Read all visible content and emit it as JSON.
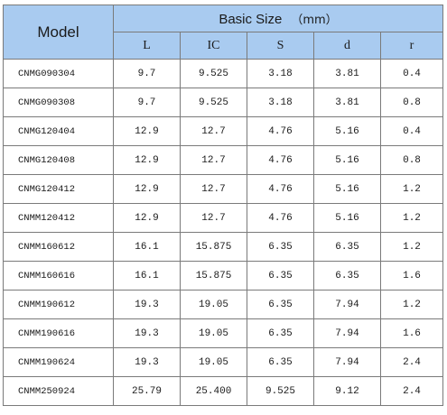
{
  "header": {
    "model": "Model",
    "group": "Basic Size",
    "unit": "（mm）",
    "columns": [
      "L",
      "IC",
      "S",
      "d",
      "r"
    ]
  },
  "rows": [
    {
      "model": "CNMG090304",
      "L": "9.7",
      "IC": "9.525",
      "S": "3.18",
      "d": "3.81",
      "r": "0.4"
    },
    {
      "model": "CNMG090308",
      "L": "9.7",
      "IC": "9.525",
      "S": "3.18",
      "d": "3.81",
      "r": "0.8"
    },
    {
      "model": "CNMG120404",
      "L": "12.9",
      "IC": "12.7",
      "S": "4.76",
      "d": "5.16",
      "r": "0.4"
    },
    {
      "model": "CNMG120408",
      "L": "12.9",
      "IC": "12.7",
      "S": "4.76",
      "d": "5.16",
      "r": "0.8"
    },
    {
      "model": "CNMG120412",
      "L": "12.9",
      "IC": "12.7",
      "S": "4.76",
      "d": "5.16",
      "r": "1.2"
    },
    {
      "model": "CNMM120412",
      "L": "12.9",
      "IC": "12.7",
      "S": "4.76",
      "d": "5.16",
      "r": "1.2"
    },
    {
      "model": "CNMM160612",
      "L": "16.1",
      "IC": "15.875",
      "S": "6.35",
      "d": "6.35",
      "r": "1.2"
    },
    {
      "model": "CNMM160616",
      "L": "16.1",
      "IC": "15.875",
      "S": "6.35",
      "d": "6.35",
      "r": "1.6"
    },
    {
      "model": "CNMM190612",
      "L": "19.3",
      "IC": "19.05",
      "S": "6.35",
      "d": "7.94",
      "r": "1.2"
    },
    {
      "model": "CNMM190616",
      "L": "19.3",
      "IC": "19.05",
      "S": "6.35",
      "d": "7.94",
      "r": "1.6"
    },
    {
      "model": "CNMM190624",
      "L": "19.3",
      "IC": "19.05",
      "S": "6.35",
      "d": "7.94",
      "r": "2.4"
    },
    {
      "model": "CNMM250924",
      "L": "25.79",
      "IC": "25.400",
      "S": "9.525",
      "d": "9.12",
      "r": "2.4"
    }
  ]
}
